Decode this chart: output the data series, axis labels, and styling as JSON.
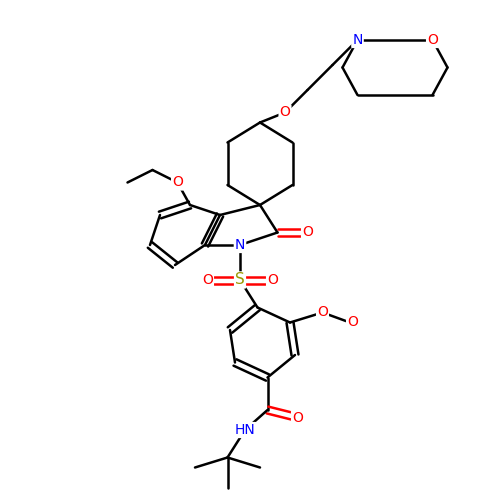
{
  "background_color": "#ffffff",
  "bond_color": "#000000",
  "atom_colors": {
    "N": "#0000ff",
    "O": "#ff0000",
    "S": "#999900",
    "C": "#000000"
  },
  "bond_width": 1.8,
  "font_size": 10
}
